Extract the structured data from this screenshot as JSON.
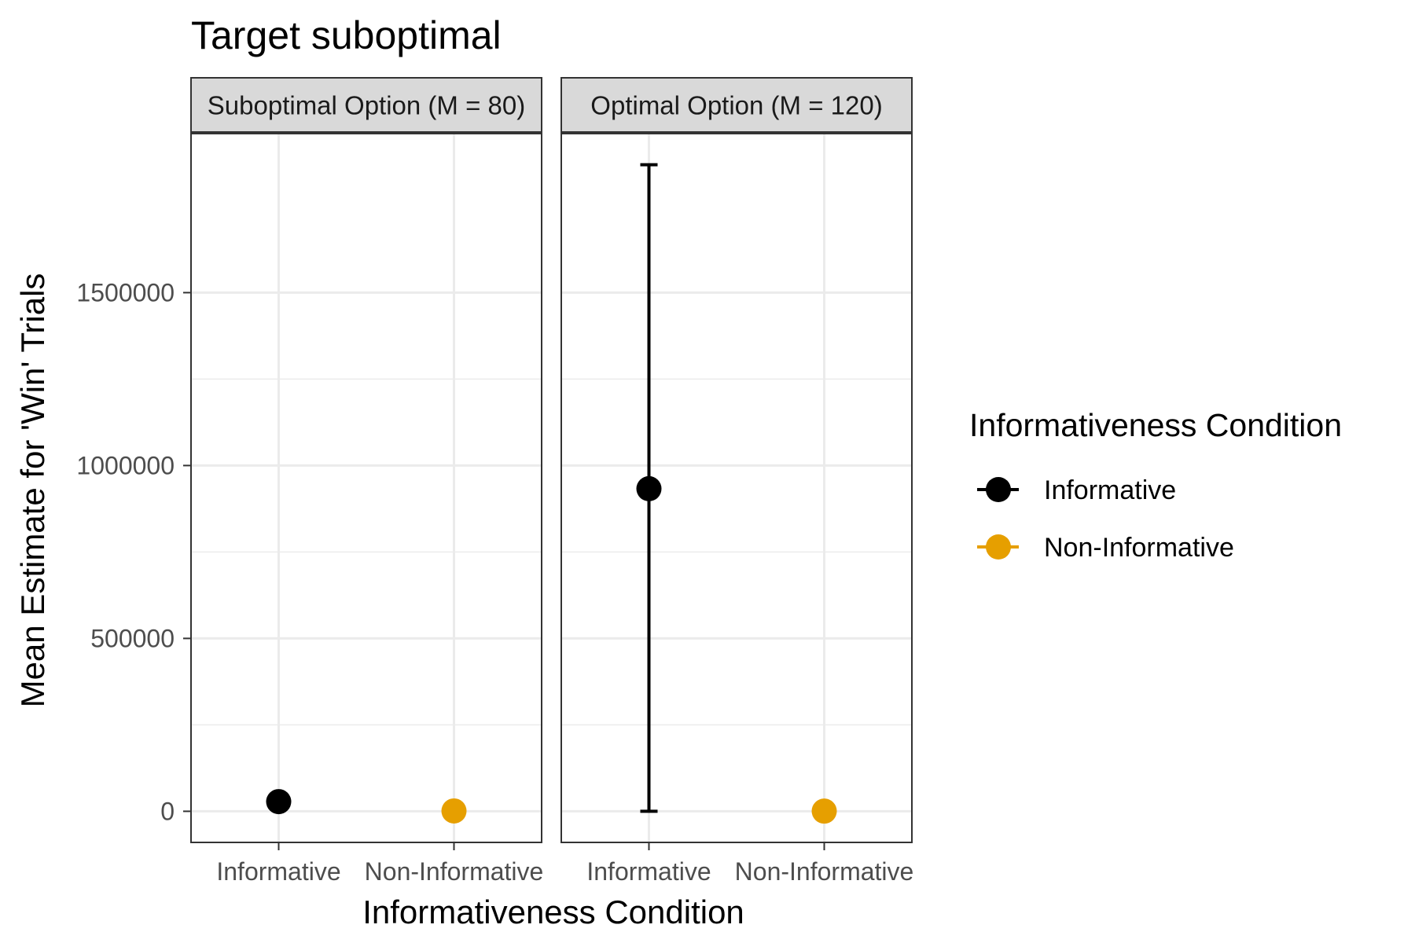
{
  "chart_data": {
    "type": "scatter",
    "title": "Target suboptimal",
    "xlabel": "Informativeness Condition",
    "ylabel": "Mean Estimate for 'Win' Trials",
    "categories": [
      "Informative",
      "Non-Informative"
    ],
    "ylim": [
      -90000,
      1960000
    ],
    "yticks": [
      0,
      500000,
      1000000,
      1500000
    ],
    "ytick_labels": [
      "0",
      "500000",
      "1000000",
      "1500000"
    ],
    "grid": true,
    "legend": {
      "title": "Informativeness Condition",
      "position": "right",
      "entries": [
        {
          "label": "Informative",
          "color": "#000000"
        },
        {
          "label": "Non-Informative",
          "color": "#E69F00"
        }
      ]
    },
    "panels": [
      {
        "label": "Suboptimal Option (M = 80)",
        "points": [
          {
            "category": "Informative",
            "y": 28000,
            "error_low": null,
            "error_high": null
          },
          {
            "category": "Non-Informative",
            "y": 1000,
            "error_low": null,
            "error_high": null
          }
        ]
      },
      {
        "label": "Optimal Option (M = 120)",
        "points": [
          {
            "category": "Informative",
            "y": 933000,
            "error_low": 0,
            "error_high": 1870000
          },
          {
            "category": "Non-Informative",
            "y": 500,
            "error_low": null,
            "error_high": null
          }
        ]
      }
    ]
  }
}
